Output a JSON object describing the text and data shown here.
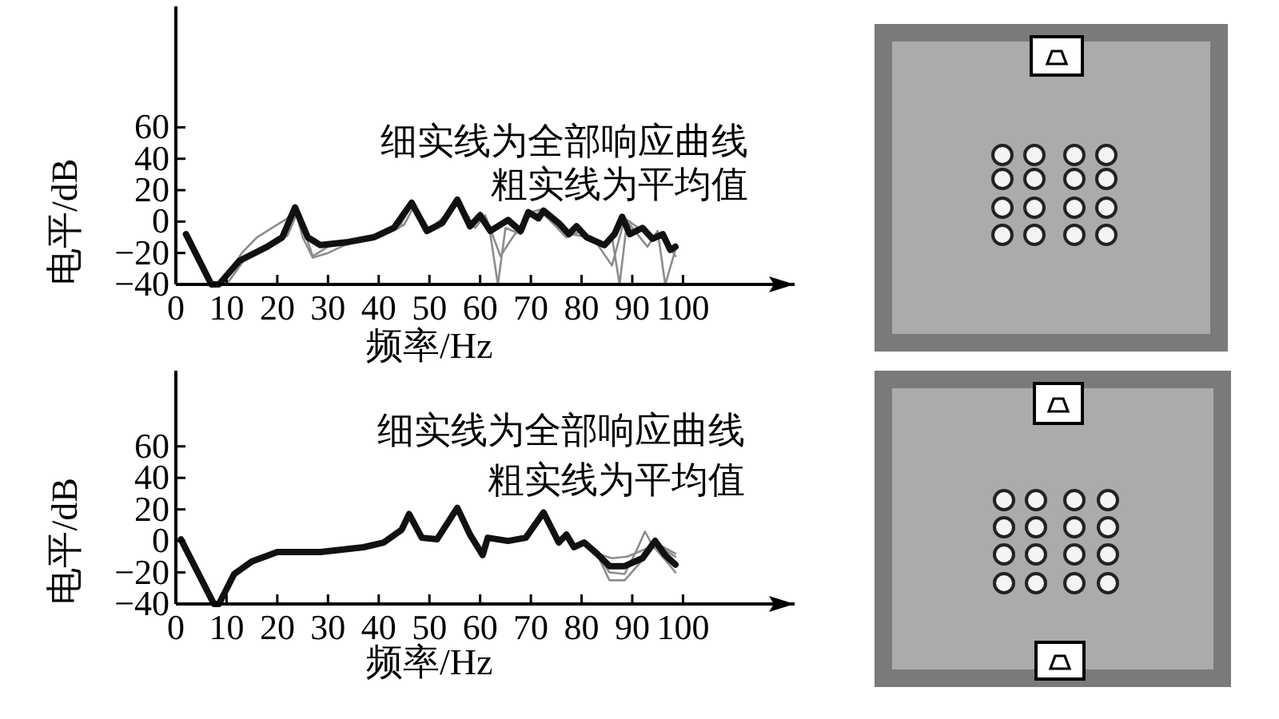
{
  "chart_data": [
    {
      "type": "line",
      "xlabel": "频率/Hz",
      "ylabel": "电平/dB",
      "xlim": [
        0,
        122
      ],
      "ylim": [
        -40,
        137
      ],
      "xticks": [
        0,
        10,
        20,
        30,
        40,
        50,
        60,
        70,
        80,
        90,
        100
      ],
      "yticks": [
        -40,
        -20,
        0,
        20,
        40,
        60
      ],
      "annotations": [
        "细实线为全部响应曲线",
        "粗实线为平均值"
      ],
      "series": [
        {
          "color": "#111111",
          "x": [
            2,
            7,
            8.5,
            12.5,
            18,
            21,
            23.5,
            26,
            28.5,
            34,
            39,
            43,
            46.5,
            49.5,
            52.5,
            55.5,
            58,
            60,
            62,
            65.5,
            68,
            69.5,
            71.5,
            72.5,
            75.5,
            77.5,
            79,
            81,
            84.5,
            86.5,
            88,
            89.5,
            92,
            94,
            96,
            97.5,
            98.5
          ],
          "values": [
            -8,
            -40,
            -40,
            -25,
            -16,
            -10,
            9,
            -10,
            -15,
            -13,
            -10,
            -4,
            12,
            -6,
            -1,
            14,
            -3,
            4,
            -6,
            1,
            -6,
            6,
            2,
            7,
            -1,
            -8,
            -3,
            -10,
            -15,
            -8,
            3,
            -8,
            -4,
            -11,
            -8,
            -18,
            -16
          ]
        },
        {
          "color": "#8c8c8c",
          "x": [
            9,
            13,
            16,
            19,
            22,
            23.5,
            25,
            27,
            30,
            34,
            40,
            44,
            46.5,
            49.5,
            52.5,
            55.5,
            58,
            60,
            62,
            63.5,
            65,
            68,
            70,
            72.5,
            75,
            78,
            81,
            84,
            86,
            87.5,
            89,
            92,
            94,
            96,
            98.5
          ],
          "values": [
            -40,
            -20,
            -10,
            -4,
            2,
            8,
            -10,
            -23,
            -20,
            -14,
            -10,
            -4,
            11,
            -6,
            -1,
            13,
            -3,
            6,
            -8,
            -40,
            -4,
            -8,
            6,
            8,
            -2,
            -8,
            -10,
            -16,
            -10,
            -40,
            1,
            -6,
            -12,
            -9,
            -22
          ]
        },
        {
          "color": "#8c8c8c",
          "x": [
            10,
            14,
            18,
            22,
            24,
            27,
            30,
            35,
            40,
            45,
            47,
            50,
            56,
            59,
            61,
            64,
            66,
            69,
            72,
            74,
            77,
            80,
            83,
            86,
            88.5,
            91,
            93,
            95,
            96.5,
            98.5
          ],
          "values": [
            -40,
            -22,
            -15,
            -9,
            6,
            -22,
            -16,
            -13,
            -10,
            -2,
            10,
            -5,
            12,
            -4,
            4,
            -22,
            -12,
            2,
            6,
            0,
            -10,
            -6,
            -14,
            -28,
            2,
            -8,
            -16,
            -6,
            -40,
            -18
          ]
        }
      ]
    },
    {
      "type": "line",
      "xlabel": "频率/Hz",
      "ylabel": "电平/dB",
      "xlim": [
        0,
        122
      ],
      "ylim": [
        -40,
        108
      ],
      "xticks": [
        0,
        10,
        20,
        30,
        40,
        50,
        60,
        70,
        80,
        90,
        100
      ],
      "yticks": [
        -40,
        -20,
        0,
        20,
        40,
        60
      ],
      "annotations": [
        "细实线为全部响应曲线",
        "粗实线为平均值"
      ],
      "series": [
        {
          "color": "#111111",
          "x": [
            1,
            7.5,
            8.5,
            11.5,
            15,
            20,
            28.5,
            37,
            41,
            44.5,
            46,
            48.5,
            51.5,
            55.5,
            58,
            60.5,
            61.5,
            65.5,
            69,
            72.5,
            75.5,
            77,
            78.5,
            80.5,
            83,
            85.5,
            88.5,
            92,
            94.5,
            96.5,
            98.5
          ],
          "values": [
            1,
            -40,
            -40,
            -21,
            -13,
            -7,
            -7,
            -4,
            -1,
            7,
            17,
            2,
            1,
            21,
            4,
            -9,
            2,
            0,
            2,
            18,
            -1,
            4,
            -4,
            -1,
            -8,
            -16,
            -16,
            -11,
            0,
            -9,
            -15
          ]
        },
        {
          "color": "#8c8c8c",
          "x": [
            80.5,
            83,
            85.5,
            88.5,
            91,
            92.5,
            94,
            96.5,
            98.5
          ],
          "values": [
            -1,
            -8,
            -20,
            -21,
            -5,
            6,
            -3,
            -12,
            -20
          ]
        },
        {
          "color": "#8c8c8c",
          "x": [
            80.5,
            83,
            85.5,
            88.5,
            91.5,
            94,
            96.5,
            98.5
          ],
          "values": [
            -1,
            -8,
            -25,
            -25,
            -14,
            -4,
            -6,
            -10
          ]
        },
        {
          "color": "#8c8c8c",
          "x": [
            83,
            86,
            89,
            92,
            95,
            98.5
          ],
          "values": [
            -8,
            -11,
            -10,
            -6,
            -2,
            -8
          ]
        }
      ]
    }
  ]
}
